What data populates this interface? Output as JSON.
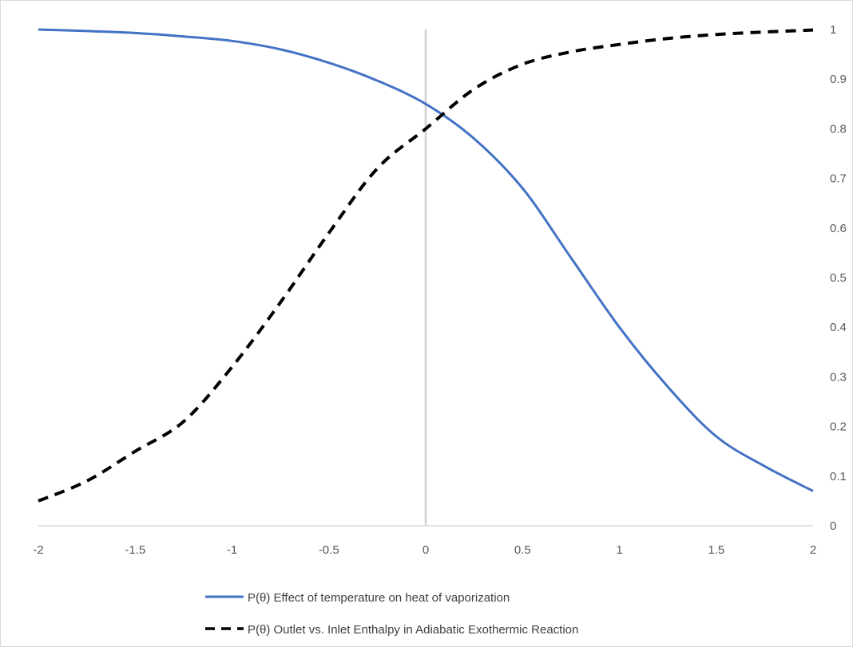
{
  "chart_data": {
    "type": "line",
    "title": "",
    "xlabel": "",
    "ylabel": "",
    "xlim": [
      -2,
      2
    ],
    "ylim": [
      0,
      1
    ],
    "x_ticks": [
      "-2",
      "-1.5",
      "-1",
      "-0.5",
      "0",
      "0.5",
      "1",
      "1.5",
      "2"
    ],
    "y_ticks": [
      "0",
      "0.1",
      "0.2",
      "0.3",
      "0.4",
      "0.5",
      "0.6",
      "0.7",
      "0.8",
      "0.9",
      "1"
    ],
    "y_axis_side": "right",
    "grid": false,
    "legend_position": "bottom",
    "x": [
      -2,
      -1.75,
      -1.5,
      -1.25,
      -1,
      -0.75,
      -0.5,
      -0.25,
      0,
      0.25,
      0.5,
      0.75,
      1,
      1.25,
      1.5,
      1.75,
      2
    ],
    "series": [
      {
        "name": "P(θ) Effect of temperature on heat of vaporization",
        "color": "#4472c4",
        "style": "solid",
        "values": [
          1.0,
          0.997,
          0.993,
          0.986,
          0.977,
          0.96,
          0.933,
          0.897,
          0.85,
          0.78,
          0.68,
          0.54,
          0.4,
          0.28,
          0.18,
          0.12,
          0.07
        ]
      },
      {
        "name": "P(θ) Outlet vs. Inlet Enthalpy in Adiabatic Exothermic Reaction",
        "color": "#000000",
        "style": "dashed",
        "values": [
          0.05,
          0.09,
          0.15,
          0.21,
          0.32,
          0.45,
          0.59,
          0.72,
          0.8,
          0.88,
          0.93,
          0.955,
          0.97,
          0.982,
          0.99,
          0.995,
          0.999
        ]
      }
    ]
  }
}
